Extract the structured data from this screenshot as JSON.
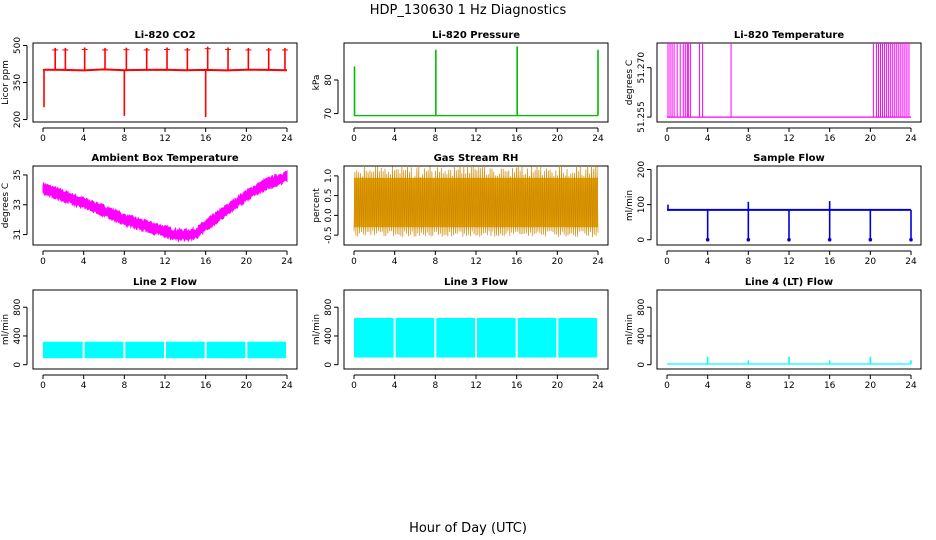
{
  "figure": {
    "title": "HDP_130630  1 Hz Diagnostics",
    "xlabel": "Hour of Day (UTC)"
  },
  "chart_data": [
    {
      "type": "line",
      "title": "Li-820 CO2",
      "ylabel": "Licor ppm",
      "color": "#ff0000",
      "xlim": [
        0,
        24
      ],
      "ylim": [
        190,
        510
      ],
      "xticks": [
        0,
        4,
        8,
        12,
        16,
        20,
        24
      ],
      "yticks": [
        200,
        350,
        500
      ],
      "series": [
        {
          "name": "baseline",
          "x": [
            0,
            0.2,
            2,
            4,
            6,
            8,
            10,
            12,
            14,
            16,
            18,
            20,
            22,
            24
          ],
          "y": [
            400,
            402,
            401,
            399,
            403,
            400,
            401,
            402,
            400,
            401,
            399,
            402,
            401,
            400
          ]
        },
        {
          "name": "spikes up",
          "x": [
            1.2,
            2.2,
            4.1,
            6.1,
            8.2,
            10.2,
            12.2,
            14.2,
            16.2,
            18.2,
            20.2,
            22.2,
            23.8
          ],
          "y": [
            490,
            490,
            492,
            490,
            491,
            490,
            492,
            490,
            495,
            492,
            490,
            490,
            490
          ]
        },
        {
          "name": "spikes down",
          "x": [
            0.1,
            8.0,
            16.0
          ],
          "y": [
            250,
            215,
            210
          ]
        }
      ]
    },
    {
      "type": "line",
      "title": "Li-820 Pressure",
      "ylabel": "kPa",
      "color": "#00bb00",
      "xlim": [
        0,
        24
      ],
      "ylim": [
        67.5,
        91
      ],
      "xticks": [
        0,
        4,
        8,
        12,
        16,
        20,
        24
      ],
      "yticks": [
        70,
        80
      ],
      "series": [
        {
          "name": "baseline",
          "x": [
            0,
            24
          ],
          "y": [
            69.4,
            69.4
          ]
        },
        {
          "name": "spikes",
          "x": [
            0.05,
            8.05,
            16.05,
            24.0
          ],
          "y": [
            84,
            89,
            90,
            89
          ]
        }
      ]
    },
    {
      "type": "line",
      "title": "Li-820 Temperature",
      "ylabel": "degrees C",
      "color": "#ff00ff",
      "xlim": [
        0,
        24
      ],
      "ylim": [
        51.2535,
        51.2775
      ],
      "xticks": [
        0,
        4,
        8,
        12,
        16,
        20,
        24
      ],
      "yticks": [
        51.255,
        51.27
      ],
      "ytick_labels": [
        "51.255",
        "51.270"
      ],
      "series": [
        {
          "name": "low level",
          "x": [
            0,
            24
          ],
          "y": [
            51.255,
            51.255
          ]
        },
        {
          "name": "toggle spikes",
          "x": [
            0.1,
            0.3,
            0.5,
            0.7,
            1.0,
            1.3,
            1.6,
            1.8,
            2.0,
            2.1,
            2.3,
            3.2,
            3.5,
            6.3,
            20.3,
            20.6,
            20.8,
            21.0,
            21.2,
            21.4,
            21.6,
            21.8,
            22.0,
            22.2,
            22.4,
            22.6,
            22.8,
            23.0,
            23.2,
            23.4,
            23.6,
            23.8
          ],
          "y": [
            51.2775,
            51.2775,
            51.2775,
            51.2775,
            51.2775,
            51.2775,
            51.2775,
            51.2775,
            51.2775,
            51.2775,
            51.2775,
            51.2775,
            51.2775,
            51.2775,
            51.2775,
            51.2775,
            51.2775,
            51.2775,
            51.2775,
            51.2775,
            51.2775,
            51.2775,
            51.2775,
            51.2775,
            51.2775,
            51.2775,
            51.2775,
            51.2775,
            51.2775,
            51.2775,
            51.2775,
            51.2775
          ]
        }
      ]
    },
    {
      "type": "line",
      "title": "Ambient Box Temperature",
      "ylabel": "degrees C",
      "color": "#ff00ff",
      "xlim": [
        0,
        24
      ],
      "ylim": [
        30.3,
        35.6
      ],
      "xticks": [
        0,
        4,
        8,
        12,
        16,
        20,
        24
      ],
      "yticks": [
        31,
        33,
        35
      ],
      "series": [
        {
          "name": "mean",
          "x": [
            0,
            2,
            4,
            6,
            8,
            10,
            12,
            13,
            14,
            15,
            16,
            18,
            20,
            22,
            24
          ],
          "y": [
            34.1,
            33.6,
            33.1,
            32.6,
            32.0,
            31.6,
            31.2,
            31.0,
            30.95,
            31.05,
            31.6,
            32.6,
            33.6,
            34.4,
            34.9
          ],
          "band": 0.6
        }
      ]
    },
    {
      "type": "line",
      "title": "Gas Stream RH",
      "ylabel": "percent",
      "color": "#e6a800",
      "xlim": [
        0,
        24
      ],
      "ylim": [
        -0.75,
        1.25
      ],
      "xticks": [
        0,
        4,
        8,
        12,
        16,
        20,
        24
      ],
      "yticks": [
        -0.5,
        0.0,
        0.5,
        1.0
      ],
      "ytick_labels": [
        "-0.5",
        "0.0",
        "0.5",
        "1.0"
      ],
      "series": [
        {
          "name": "noise band",
          "x": [
            0,
            24
          ],
          "y_low": [
            -0.4,
            -0.4
          ],
          "y_high": [
            1.05,
            1.05
          ]
        }
      ]
    },
    {
      "type": "line",
      "title": "Sample Flow",
      "ylabel": "ml/min",
      "color": "#0000dd",
      "xlim": [
        0,
        24
      ],
      "ylim": [
        -15,
        210
      ],
      "xticks": [
        0,
        4,
        8,
        12,
        16,
        20,
        24
      ],
      "yticks": [
        0,
        100,
        200
      ],
      "series": [
        {
          "name": "baseline",
          "x": [
            0,
            24
          ],
          "y": [
            85,
            85
          ]
        },
        {
          "name": "drops",
          "x": [
            4.0,
            8.0,
            12.0,
            16.0,
            20.0,
            24.0
          ],
          "y": [
            0,
            0,
            0,
            0,
            0,
            0
          ]
        },
        {
          "name": "spikes",
          "x": [
            0.1,
            8.0,
            16.0
          ],
          "y": [
            100,
            108,
            110
          ]
        }
      ]
    },
    {
      "type": "line",
      "title": "Line 2 Flow",
      "ylabel": "ml/min",
      "color": "#00ffff",
      "xlim": [
        0,
        24
      ],
      "ylim": [
        -60,
        1040
      ],
      "xticks": [
        0,
        4,
        8,
        12,
        16,
        20,
        24
      ],
      "yticks": [
        0,
        400,
        800
      ],
      "series": [
        {
          "name": "band",
          "x": [
            0,
            24
          ],
          "y_low": [
            90,
            90
          ],
          "y_high": [
            320,
            320
          ],
          "gaps": [
            4,
            8,
            12,
            16,
            20,
            24
          ]
        }
      ]
    },
    {
      "type": "line",
      "title": "Line 3 Flow",
      "ylabel": "ml/min",
      "color": "#00ffff",
      "xlim": [
        0,
        24
      ],
      "ylim": [
        -60,
        1040
      ],
      "xticks": [
        0,
        4,
        8,
        12,
        16,
        20,
        24
      ],
      "yticks": [
        0,
        400,
        800
      ],
      "series": [
        {
          "name": "band",
          "x": [
            0,
            24
          ],
          "y_low": [
            100,
            100
          ],
          "y_high": [
            650,
            650
          ],
          "gaps": [
            4,
            8,
            12,
            16,
            20,
            24
          ]
        }
      ]
    },
    {
      "type": "line",
      "title": "Line 4 (LT) Flow",
      "ylabel": "ml/min",
      "color": "#00ffff",
      "xlim": [
        0,
        24
      ],
      "ylim": [
        -60,
        1040
      ],
      "xticks": [
        0,
        4,
        8,
        12,
        16,
        20,
        24
      ],
      "yticks": [
        0,
        400,
        800
      ],
      "series": [
        {
          "name": "baseline",
          "x": [
            0,
            24
          ],
          "y": [
            10,
            10
          ]
        },
        {
          "name": "spikes",
          "x": [
            4.0,
            8.0,
            12.0,
            16.0,
            20.0,
            24.0
          ],
          "y": [
            110,
            60,
            110,
            60,
            110,
            60
          ]
        }
      ]
    }
  ]
}
